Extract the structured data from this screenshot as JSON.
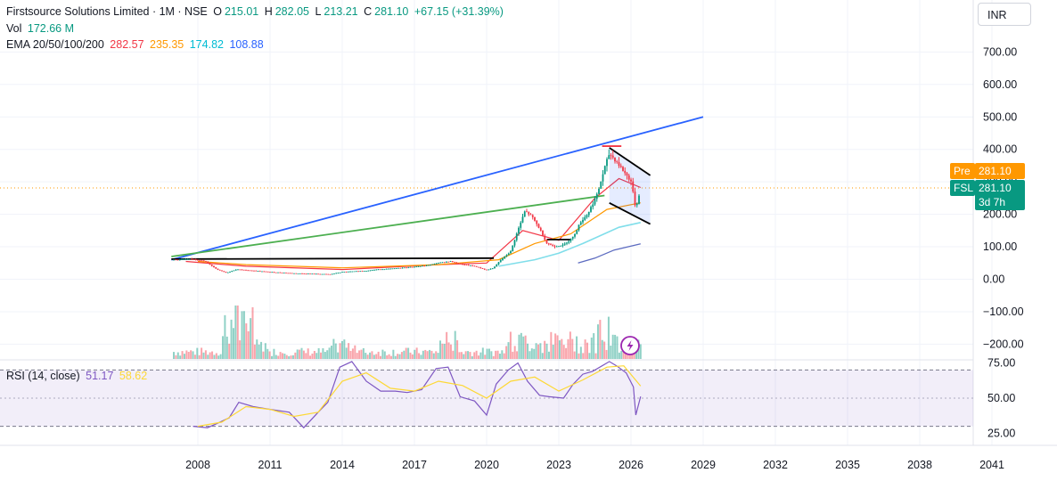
{
  "header": {
    "title": "Firstsource Solutions Limited · 1M · NSE",
    "open_label": "O",
    "open": "215.01",
    "high_label": "H",
    "high": "282.05",
    "low_label": "L",
    "low": "213.21",
    "close_label": "C",
    "close": "281.10",
    "change": "+67.15 (+31.39%)",
    "vol_label": "Vol",
    "vol_value": "172.66 M",
    "ema_label": "EMA 20/50/100/200",
    "ema20": "282.57",
    "ema50": "235.35",
    "ema100": "174.82",
    "ema200": "108.88"
  },
  "currency": "INR",
  "price_tags": {
    "pre_label": "Pre",
    "pre_value": "281.10",
    "symbol": "FSL",
    "last_value": "281.10",
    "countdown": "3d 7h"
  },
  "rsi_legend": {
    "label": "RSI (14, close)",
    "rsi": "51.17",
    "ma": "58.62"
  },
  "colors": {
    "up": "#089981",
    "down": "#f23645",
    "ema20": "#f23645",
    "ema50": "#ff9800",
    "ema100": "#00bcd4",
    "ema200": "#2962ff",
    "rsi": "#7e57c2",
    "rsi_ma": "#fdd835",
    "trend_blue": "#2962ff",
    "trend_green": "#4caf50",
    "pre_tag": "#ff9800",
    "last_tag": "#089981"
  },
  "icons": {
    "alert": "lightning-icon"
  },
  "chart_data": [
    {
      "type": "candlestick",
      "title": "Firstsource Solutions Limited · 1M · NSE",
      "x_axis": {
        "ticks": [
          "2008",
          "2011",
          "2014",
          "2017",
          "2020",
          "2023",
          "2026",
          "2029",
          "2032",
          "2035",
          "2038",
          "2041"
        ],
        "range": [
          2007,
          2041
        ]
      },
      "y_axis": {
        "ticks": [
          "700.00",
          "600.00",
          "500.00",
          "400.00",
          "300.00",
          "200.00",
          "100.00",
          "0.00",
          "−100.00",
          "−200.00"
        ],
        "range": [
          -250,
          780
        ]
      },
      "grid": true,
      "price_series_approx": [
        [
          2007.2,
          60
        ],
        [
          2007.8,
          62
        ],
        [
          2008.3,
          55
        ],
        [
          2008.8,
          30
        ],
        [
          2009.2,
          20
        ],
        [
          2009.6,
          30
        ],
        [
          2010,
          28
        ],
        [
          2010.5,
          25
        ],
        [
          2011,
          22
        ],
        [
          2011.5,
          20
        ],
        [
          2012,
          18
        ],
        [
          2012.5,
          17
        ],
        [
          2013,
          16
        ],
        [
          2013.5,
          15
        ],
        [
          2014,
          22
        ],
        [
          2014.5,
          24
        ],
        [
          2015,
          26
        ],
        [
          2015.5,
          30
        ],
        [
          2016,
          32
        ],
        [
          2016.5,
          35
        ],
        [
          2017,
          38
        ],
        [
          2017.5,
          42
        ],
        [
          2018,
          50
        ],
        [
          2018.5,
          55
        ],
        [
          2019,
          45
        ],
        [
          2019.5,
          40
        ],
        [
          2020,
          28
        ],
        [
          2020.3,
          35
        ],
        [
          2020.6,
          60
        ],
        [
          2021,
          85
        ],
        [
          2021.3,
          150
        ],
        [
          2021.6,
          210
        ],
        [
          2021.9,
          190
        ],
        [
          2022.2,
          155
        ],
        [
          2022.5,
          110
        ],
        [
          2022.8,
          100
        ],
        [
          2023.2,
          105
        ],
        [
          2023.6,
          130
        ],
        [
          2023.9,
          175
        ],
        [
          2024.2,
          200
        ],
        [
          2024.6,
          260
        ],
        [
          2024.9,
          340
        ],
        [
          2025.1,
          385
        ],
        [
          2025.4,
          360
        ],
        [
          2025.7,
          330
        ],
        [
          2026,
          300
        ],
        [
          2026.2,
          215
        ],
        [
          2026.4,
          281.1
        ]
      ],
      "ema20_approx": [
        [
          2007.5,
          55
        ],
        [
          2010,
          40
        ],
        [
          2014,
          30
        ],
        [
          2018,
          45
        ],
        [
          2020,
          50
        ],
        [
          2021.5,
          150
        ],
        [
          2023,
          120
        ],
        [
          2024.5,
          250
        ],
        [
          2025.5,
          310
        ],
        [
          2026.4,
          282.57
        ]
      ],
      "ema50_approx": [
        [
          2008,
          55
        ],
        [
          2010,
          45
        ],
        [
          2014,
          35
        ],
        [
          2018,
          45
        ],
        [
          2020.5,
          60
        ],
        [
          2022,
          110
        ],
        [
          2023.5,
          140
        ],
        [
          2025,
          215
        ],
        [
          2026.4,
          235.35
        ]
      ],
      "ema100_approx": [
        [
          2020.5,
          40
        ],
        [
          2022,
          60
        ],
        [
          2023,
          80
        ],
        [
          2024,
          110
        ],
        [
          2025.5,
          160
        ],
        [
          2026.4,
          174.82
        ]
      ],
      "ema200_approx": [
        [
          2023.8,
          50
        ],
        [
          2024.5,
          65
        ],
        [
          2025.3,
          90
        ],
        [
          2026.4,
          108.88
        ]
      ],
      "volume_bars": 220,
      "drawings": [
        {
          "kind": "trendline",
          "color": "#2962ff",
          "from": [
            2006.9,
            60
          ],
          "to": [
            2029,
            500
          ]
        },
        {
          "kind": "trendline",
          "color": "#4caf50",
          "from": [
            2006.9,
            70
          ],
          "to": [
            2024.9,
            258
          ]
        },
        {
          "kind": "trendline",
          "color": "#000000",
          "from": [
            2006.9,
            62
          ],
          "to": [
            2020.3,
            65
          ]
        },
        {
          "kind": "channel_upper",
          "color": "#000000",
          "from": [
            2025.1,
            405
          ],
          "to": [
            2026.8,
            320
          ]
        },
        {
          "kind": "channel_lower",
          "color": "#000000",
          "from": [
            2025.1,
            235
          ],
          "to": [
            2026.8,
            170
          ]
        },
        {
          "kind": "horizontal",
          "color": "#000000",
          "from": [
            2022.5,
            122
          ],
          "to": [
            2023.5,
            122
          ]
        },
        {
          "kind": "horizontal",
          "color": "#f23645",
          "from": [
            2024.8,
            410
          ],
          "to": [
            2025.6,
            410
          ]
        }
      ]
    },
    {
      "type": "line",
      "title": "RSI (14, close)",
      "y_axis": {
        "ticks": [
          "75.00",
          "50.00",
          "25.00"
        ],
        "range": [
          18,
          80
        ]
      },
      "bands": [
        30,
        70
      ],
      "series": [
        {
          "name": "RSI",
          "values_approx": [
            [
              2007.8,
              30
            ],
            [
              2008.4,
              29
            ],
            [
              2008.8,
              32
            ],
            [
              2009.3,
              36
            ],
            [
              2009.7,
              47
            ],
            [
              2010.3,
              44
            ],
            [
              2011,
              42
            ],
            [
              2011.8,
              40
            ],
            [
              2012.4,
              29
            ],
            [
              2013,
              40
            ],
            [
              2013.4,
              47
            ],
            [
              2013.9,
              72
            ],
            [
              2014.4,
              76
            ],
            [
              2015,
              62
            ],
            [
              2015.6,
              55
            ],
            [
              2016.2,
              55
            ],
            [
              2016.7,
              54
            ],
            [
              2017.3,
              56
            ],
            [
              2017.9,
              71
            ],
            [
              2018.4,
              72
            ],
            [
              2018.9,
              51
            ],
            [
              2019.5,
              48
            ],
            [
              2020,
              38
            ],
            [
              2020.4,
              60
            ],
            [
              2020.9,
              70
            ],
            [
              2021.3,
              75
            ],
            [
              2021.7,
              62
            ],
            [
              2022.2,
              52
            ],
            [
              2022.6,
              51
            ],
            [
              2023.2,
              50
            ],
            [
              2023.6,
              60
            ],
            [
              2024,
              67
            ],
            [
              2024.4,
              69
            ],
            [
              2024.8,
              73
            ],
            [
              2025.1,
              76
            ],
            [
              2025.4,
              73
            ],
            [
              2025.8,
              68
            ],
            [
              2026.1,
              58
            ],
            [
              2026.2,
              38
            ],
            [
              2026.4,
              51.17
            ]
          ]
        },
        {
          "name": "RSI-based MA",
          "values_approx": [
            [
              2008,
              30
            ],
            [
              2009,
              33
            ],
            [
              2010,
              44
            ],
            [
              2011,
              42
            ],
            [
              2012,
              37
            ],
            [
              2013,
              40
            ],
            [
              2014,
              62
            ],
            [
              2015,
              68
            ],
            [
              2016,
              57
            ],
            [
              2017,
              55
            ],
            [
              2018,
              62
            ],
            [
              2019,
              59
            ],
            [
              2020,
              50
            ],
            [
              2021,
              62
            ],
            [
              2022,
              65
            ],
            [
              2023,
              55
            ],
            [
              2024,
              63
            ],
            [
              2025,
              72
            ],
            [
              2025.7,
              73
            ],
            [
              2026.4,
              58.62
            ]
          ]
        }
      ]
    }
  ]
}
